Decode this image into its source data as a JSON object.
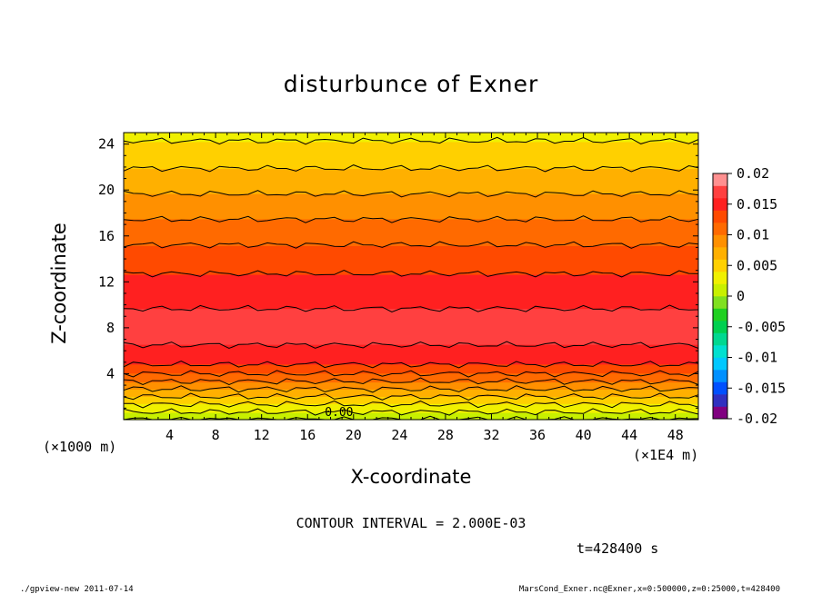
{
  "chart_data": {
    "type": "heatmap",
    "title": "disturbunce of Exner",
    "xlabel": "X-coordinate",
    "ylabel": "Z-coordinate",
    "x_unit": "(×1E4 m)",
    "y_unit": "(×1000 m)",
    "xlim": [
      0,
      50
    ],
    "ylim": [
      0,
      25
    ],
    "xticks": [
      "4",
      "8",
      "12",
      "16",
      "20",
      "24",
      "28",
      "32",
      "36",
      "40",
      "44",
      "48"
    ],
    "yticks": [
      "4",
      "8",
      "12",
      "16",
      "20",
      "24"
    ],
    "colorbar": {
      "ticks": [
        "0.02",
        "0.015",
        "0.01",
        "0.005",
        "0",
        "-0.005",
        "-0.01",
        "-0.015",
        "-0.02"
      ],
      "range": [
        -0.02,
        0.02
      ],
      "colors": [
        "#800080",
        "#3030c0",
        "#0050ff",
        "#0090ff",
        "#00c8ff",
        "#00e0d0",
        "#00d890",
        "#00d050",
        "#20d020",
        "#80e020",
        "#c8f000",
        "#f0f000",
        "#ffd000",
        "#ffb000",
        "#ff9000",
        "#ff6a00",
        "#ff4a00",
        "#ff2020",
        "#ff4040",
        "#ff9090"
      ]
    },
    "profile": {
      "z": [
        0,
        1,
        2,
        3,
        4,
        5,
        6,
        7,
        8,
        9,
        10,
        11,
        12,
        13,
        14,
        15,
        16,
        17,
        18,
        19,
        20,
        21,
        22,
        23,
        24,
        25
      ],
      "value": [
        0.0,
        0.003,
        0.006,
        0.009,
        0.012,
        0.0145,
        0.0155,
        0.0165,
        0.0168,
        0.0164,
        0.0158,
        0.0152,
        0.0145,
        0.0138,
        0.013,
        0.0122,
        0.0113,
        0.0104,
        0.0095,
        0.0086,
        0.0077,
        0.0068,
        0.0059,
        0.005,
        0.0042,
        0.0035
      ]
    },
    "contour_label": "0.00",
    "contour_interval": "CONTOUR INTERVAL = 2.000E-03"
  },
  "time_label": "t=428400 s",
  "footer_left": "./gpview-new   2011-07-14",
  "footer_right": "MarsCond_Exner.nc@Exner,x=0:500000,z=0:25000,t=428400"
}
